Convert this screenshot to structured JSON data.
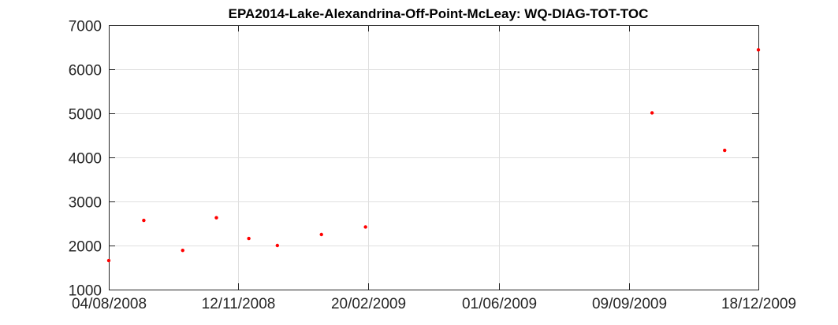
{
  "chart_data": {
    "type": "scatter",
    "title": "EPA2014-Lake-Alexandrina-Off-Point-McLeay: WQ-DIAG-TOT-TOC",
    "xlabel": "",
    "ylabel": "",
    "x_axis": "date",
    "xlim": [
      "2008-08-04",
      "2009-12-18"
    ],
    "ylim": [
      1000,
      7000
    ],
    "x_ticks": [
      {
        "date": "2008-08-04",
        "label": "04/08/2008"
      },
      {
        "date": "2008-11-12",
        "label": "12/11/2008"
      },
      {
        "date": "2009-02-20",
        "label": "20/02/2009"
      },
      {
        "date": "2009-06-01",
        "label": "01/06/2009"
      },
      {
        "date": "2009-09-09",
        "label": "09/09/2009"
      },
      {
        "date": "2009-12-18",
        "label": "18/12/2009"
      }
    ],
    "y_ticks": [
      1000,
      2000,
      3000,
      4000,
      5000,
      6000,
      7000
    ],
    "grid": true,
    "marker_color": "#ff0000",
    "points": [
      {
        "x": "2008-08-04",
        "y": 1660
      },
      {
        "x": "2008-08-31",
        "y": 2570
      },
      {
        "x": "2008-09-30",
        "y": 1890
      },
      {
        "x": "2008-10-26",
        "y": 2630
      },
      {
        "x": "2008-11-20",
        "y": 2160
      },
      {
        "x": "2008-12-12",
        "y": 2000
      },
      {
        "x": "2009-01-15",
        "y": 2250
      },
      {
        "x": "2009-02-18",
        "y": 2420
      },
      {
        "x": "2009-09-27",
        "y": 5010
      },
      {
        "x": "2009-11-22",
        "y": 4160
      },
      {
        "x": "2009-12-18",
        "y": 6440
      }
    ]
  }
}
